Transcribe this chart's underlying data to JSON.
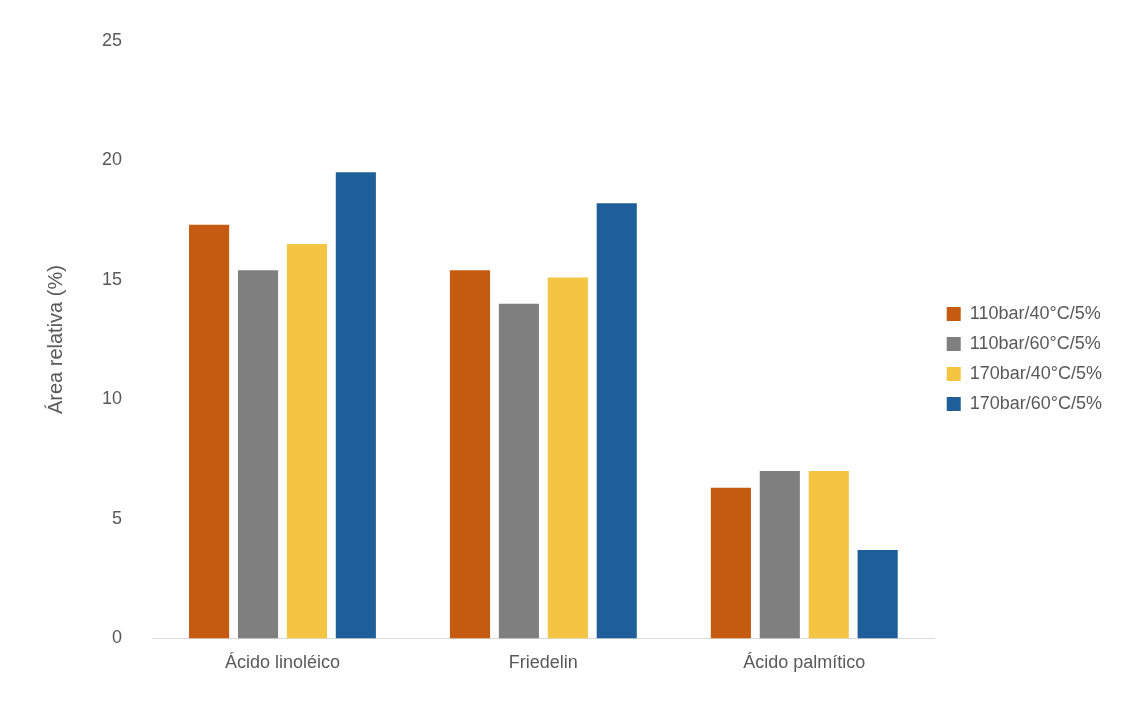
{
  "chart_data": {
    "type": "bar",
    "ylabel": "Área relativa (%)",
    "categories": [
      "Ácido linoléico",
      "Friedelin",
      "Ácido palmítico"
    ],
    "series": [
      {
        "name": "110bar/40°C/5%",
        "color": "#c55a11",
        "values": [
          17.3,
          15.4,
          6.3
        ]
      },
      {
        "name": "110bar/60°C/5%",
        "color": "#7f7f7f",
        "values": [
          15.4,
          14.0,
          7.0
        ]
      },
      {
        "name": "170bar/40°C/5%",
        "color": "#f4c542",
        "values": [
          16.5,
          15.1,
          7.0
        ]
      },
      {
        "name": "170bar/60°C/5%",
        "color": "#1f5f99",
        "values": [
          19.5,
          18.2,
          3.7
        ]
      }
    ],
    "ylim": [
      0,
      25
    ],
    "yticks": [
      0,
      5,
      10,
      15,
      20,
      25
    ],
    "grid": false,
    "legend": "right"
  }
}
